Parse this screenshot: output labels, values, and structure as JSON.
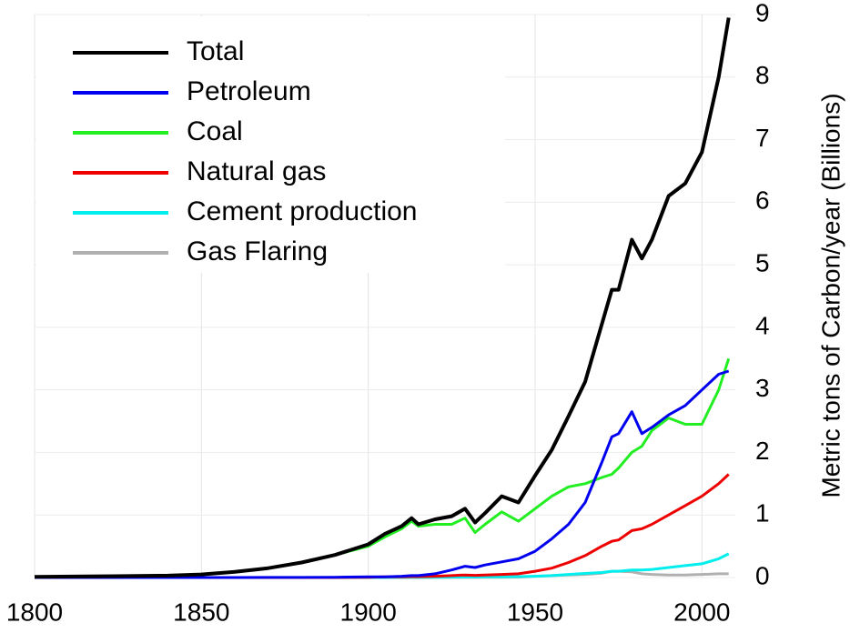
{
  "chart_data": {
    "type": "line",
    "y_label": "Metric tons of Carbon/year (Billions)",
    "x": [
      1800,
      1820,
      1840,
      1850,
      1860,
      1870,
      1880,
      1890,
      1900,
      1905,
      1910,
      1913,
      1915,
      1920,
      1925,
      1929,
      1932,
      1935,
      1940,
      1945,
      1950,
      1955,
      1960,
      1965,
      1970,
      1973,
      1975,
      1979,
      1982,
      1985,
      1990,
      1995,
      2000,
      2005,
      2008
    ],
    "series": [
      {
        "name": "Total",
        "color": "#000000",
        "values": [
          0.01,
          0.02,
          0.03,
          0.05,
          0.09,
          0.15,
          0.24,
          0.36,
          0.53,
          0.7,
          0.82,
          0.95,
          0.85,
          0.93,
          0.98,
          1.1,
          0.88,
          1.03,
          1.3,
          1.2,
          1.63,
          2.04,
          2.58,
          3.13,
          4.05,
          4.6,
          4.6,
          5.4,
          5.1,
          5.4,
          6.1,
          6.3,
          6.8,
          8.0,
          8.95
        ]
      },
      {
        "name": "Petroleum",
        "color": "#0000ee",
        "values": [
          0,
          0,
          0,
          0,
          0,
          0.001,
          0.002,
          0.005,
          0.01,
          0.012,
          0.02,
          0.03,
          0.03,
          0.06,
          0.12,
          0.18,
          0.16,
          0.2,
          0.25,
          0.3,
          0.42,
          0.62,
          0.85,
          1.2,
          1.84,
          2.25,
          2.3,
          2.65,
          2.3,
          2.4,
          2.6,
          2.75,
          3.0,
          3.25,
          3.3
        ]
      },
      {
        "name": "Coal",
        "color": "#22ee22",
        "values": [
          0.01,
          0.02,
          0.03,
          0.05,
          0.09,
          0.15,
          0.24,
          0.36,
          0.5,
          0.65,
          0.78,
          0.9,
          0.82,
          0.85,
          0.85,
          0.95,
          0.72,
          0.85,
          1.05,
          0.9,
          1.1,
          1.3,
          1.45,
          1.5,
          1.6,
          1.65,
          1.75,
          2.0,
          2.1,
          2.35,
          2.55,
          2.45,
          2.45,
          3.0,
          3.5
        ]
      },
      {
        "name": "Natural gas",
        "color": "#ee0000",
        "values": [
          0,
          0,
          0,
          0,
          0,
          0,
          0,
          0,
          0.005,
          0.01,
          0.01,
          0.015,
          0.015,
          0.02,
          0.03,
          0.04,
          0.035,
          0.04,
          0.05,
          0.06,
          0.1,
          0.15,
          0.24,
          0.35,
          0.5,
          0.58,
          0.6,
          0.75,
          0.78,
          0.85,
          1.0,
          1.15,
          1.3,
          1.5,
          1.65
        ]
      },
      {
        "name": "Cement production",
        "color": "#00eeee",
        "values": [
          0,
          0,
          0,
          0,
          0,
          0,
          0,
          0,
          0.001,
          0.002,
          0.003,
          0.004,
          0.004,
          0.005,
          0.007,
          0.01,
          0.008,
          0.01,
          0.012,
          0.015,
          0.02,
          0.03,
          0.05,
          0.065,
          0.08,
          0.1,
          0.1,
          0.12,
          0.12,
          0.13,
          0.16,
          0.19,
          0.22,
          0.3,
          0.38
        ]
      },
      {
        "name": "Gas Flaring",
        "color": "#b0b0b0",
        "values": [
          0,
          0,
          0,
          0,
          0,
          0,
          0,
          0,
          0,
          0,
          0,
          0,
          0,
          0,
          0.001,
          0.002,
          0.002,
          0.003,
          0.005,
          0.006,
          0.02,
          0.03,
          0.04,
          0.05,
          0.07,
          0.1,
          0.1,
          0.09,
          0.06,
          0.05,
          0.04,
          0.04,
          0.05,
          0.06,
          0.06
        ]
      }
    ],
    "xlim": [
      1800,
      2010
    ],
    "xticks": [
      1800,
      1850,
      1900,
      1950,
      2000
    ],
    "ylim": [
      0,
      9
    ],
    "yticks": [
      0,
      1,
      2,
      3,
      4,
      5,
      6,
      7,
      8,
      9
    ],
    "grid": true,
    "legend": "upper-left"
  }
}
